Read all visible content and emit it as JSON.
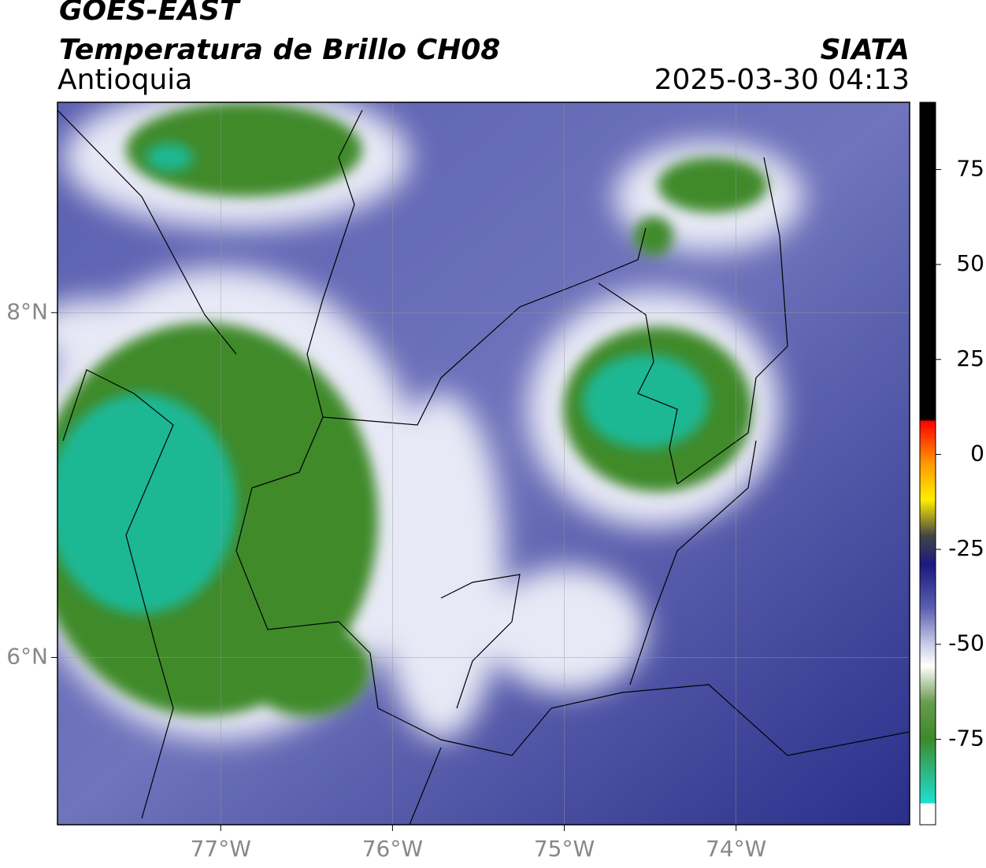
{
  "header": {
    "title": "GOES-EAST",
    "subtitle": "Temperatura de Brillo CH08",
    "region": "Antioquia",
    "source": "SIATA",
    "datetime": "2025-03-30 04:13"
  },
  "map": {
    "xlim": [
      -77.95,
      -72.99
    ],
    "ylim": [
      5.03,
      9.22
    ],
    "xticks": [
      {
        "value": -77,
        "label": "77°W"
      },
      {
        "value": -76,
        "label": "76°W"
      },
      {
        "value": -75,
        "label": "75°W"
      },
      {
        "value": -74,
        "label": "74°W"
      }
    ],
    "yticks": [
      {
        "value": 6,
        "label": "6°N"
      },
      {
        "value": 8,
        "label": "8°N"
      }
    ],
    "grid": true
  },
  "colorbar": {
    "lim": [
      -97.5,
      92.7
    ],
    "ticks": [
      75,
      50,
      25,
      0,
      -25,
      -50,
      -75
    ]
  }
}
